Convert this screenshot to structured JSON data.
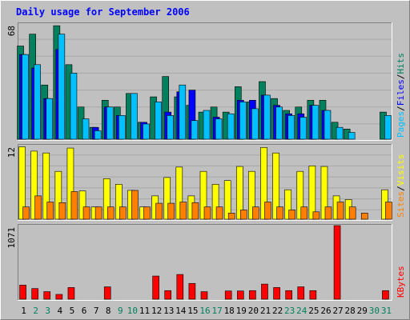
{
  "title": "Daily usage for September 2006",
  "colors": {
    "background": "#c0c0c0",
    "hits": "#00805c",
    "files": "#0000ff",
    "pages": "#00c0ff",
    "visits": "#ffff00",
    "sites": "#ff8000",
    "kbytes": "#ff0000",
    "title": "#0000ff",
    "weekend_label": "#00805c"
  },
  "chart_data": [
    {
      "type": "bar",
      "panel": "hits-files-pages",
      "categories": [
        "1",
        "2",
        "3",
        "4",
        "5",
        "6",
        "7",
        "8",
        "9",
        "10",
        "11",
        "12",
        "13",
        "14",
        "15",
        "16",
        "17",
        "18",
        "19",
        "20",
        "21",
        "22",
        "23",
        "24",
        "25",
        "26",
        "27",
        "28",
        "29",
        "30",
        "31"
      ],
      "y_scale_label": "68",
      "ylim": [
        0,
        68
      ],
      "right_labels": [
        "Pages",
        "/",
        "Files",
        "/",
        "Hits"
      ],
      "series": [
        {
          "name": "Hits",
          "values": [
            55,
            62,
            32,
            67,
            44,
            19,
            7,
            23,
            19,
            27,
            10,
            25,
            37,
            25,
            20,
            16,
            19,
            16,
            31,
            22,
            34,
            24,
            17,
            19,
            23,
            23,
            10,
            6,
            0,
            0,
            16
          ]
        },
        {
          "name": "Files",
          "values": [
            50,
            42,
            24,
            53,
            0,
            0,
            7,
            19,
            14,
            0,
            10,
            0,
            16,
            28,
            29,
            0,
            13,
            0,
            23,
            23,
            26,
            20,
            15,
            15,
            20,
            17,
            0,
            0,
            0,
            0,
            0
          ]
        },
        {
          "name": "Pages",
          "values": [
            50,
            44,
            24,
            62,
            39,
            12,
            5,
            19,
            14,
            27,
            9,
            22,
            14,
            32,
            11,
            17,
            12,
            15,
            22,
            18,
            26,
            19,
            14,
            13,
            20,
            17,
            7,
            4,
            0,
            0,
            14
          ]
        }
      ]
    },
    {
      "type": "bar",
      "panel": "visits-sites",
      "categories": [
        "1",
        "2",
        "3",
        "4",
        "5",
        "6",
        "7",
        "8",
        "9",
        "10",
        "11",
        "12",
        "13",
        "14",
        "15",
        "16",
        "17",
        "18",
        "19",
        "20",
        "21",
        "22",
        "23",
        "24",
        "25",
        "26",
        "27",
        "28",
        "29",
        "30",
        "31"
      ],
      "y_scale_label": "12",
      "ylim": [
        0,
        12
      ],
      "right_labels": [
        "Sites",
        "/",
        "Visits"
      ],
      "series": [
        {
          "name": "Visits",
          "values": [
            11.8,
            11.1,
            10.8,
            7.8,
            11.6,
            4.6,
            2.0,
            6.6,
            5.7,
            4.7,
            2.0,
            3.8,
            6.8,
            8.5,
            3.8,
            7.8,
            5.7,
            6.3,
            8.6,
            7.8,
            11.7,
            10.8,
            4.8,
            7.8,
            8.7,
            8.6,
            3.8,
            3.2,
            0,
            0,
            4.8
          ]
        },
        {
          "name": "Sites",
          "values": [
            2.0,
            3.8,
            2.8,
            2.7,
            4.5,
            2.0,
            2.0,
            2.0,
            2.0,
            4.7,
            2.0,
            2.6,
            2.6,
            2.8,
            2.7,
            2.0,
            2.0,
            1.0,
            1.5,
            2.0,
            2.8,
            2.0,
            1.5,
            2.0,
            1.2,
            2.0,
            2.8,
            2.0,
            1.0,
            0,
            2.8
          ]
        }
      ]
    },
    {
      "type": "bar",
      "panel": "kbytes",
      "categories": [
        "1",
        "2",
        "3",
        "4",
        "5",
        "6",
        "7",
        "8",
        "9",
        "10",
        "11",
        "12",
        "13",
        "14",
        "15",
        "16",
        "17",
        "18",
        "19",
        "20",
        "21",
        "22",
        "23",
        "24",
        "25",
        "26",
        "27",
        "28",
        "29",
        "30",
        "31"
      ],
      "y_scale_label": "1071",
      "ylim": [
        0,
        1071
      ],
      "right_labels": [
        "KBytes"
      ],
      "series": [
        {
          "name": "KBytes",
          "values": [
            205,
            155,
            110,
            70,
            170,
            0,
            0,
            180,
            0,
            0,
            0,
            337,
            125,
            360,
            230,
            110,
            0,
            120,
            120,
            125,
            220,
            170,
            125,
            180,
            125,
            0,
            1071,
            0,
            0,
            0,
            125
          ]
        }
      ]
    }
  ],
  "x_axis": {
    "labels": [
      "1",
      "2",
      "3",
      "4",
      "5",
      "6",
      "7",
      "8",
      "9",
      "10",
      "11",
      "12",
      "13",
      "14",
      "15",
      "16",
      "17",
      "18",
      "19",
      "20",
      "21",
      "22",
      "23",
      "24",
      "25",
      "26",
      "27",
      "28",
      "29",
      "30",
      "31"
    ],
    "weekend_days": [
      2,
      3,
      9,
      10,
      16,
      17,
      23,
      24,
      30,
      31
    ]
  }
}
